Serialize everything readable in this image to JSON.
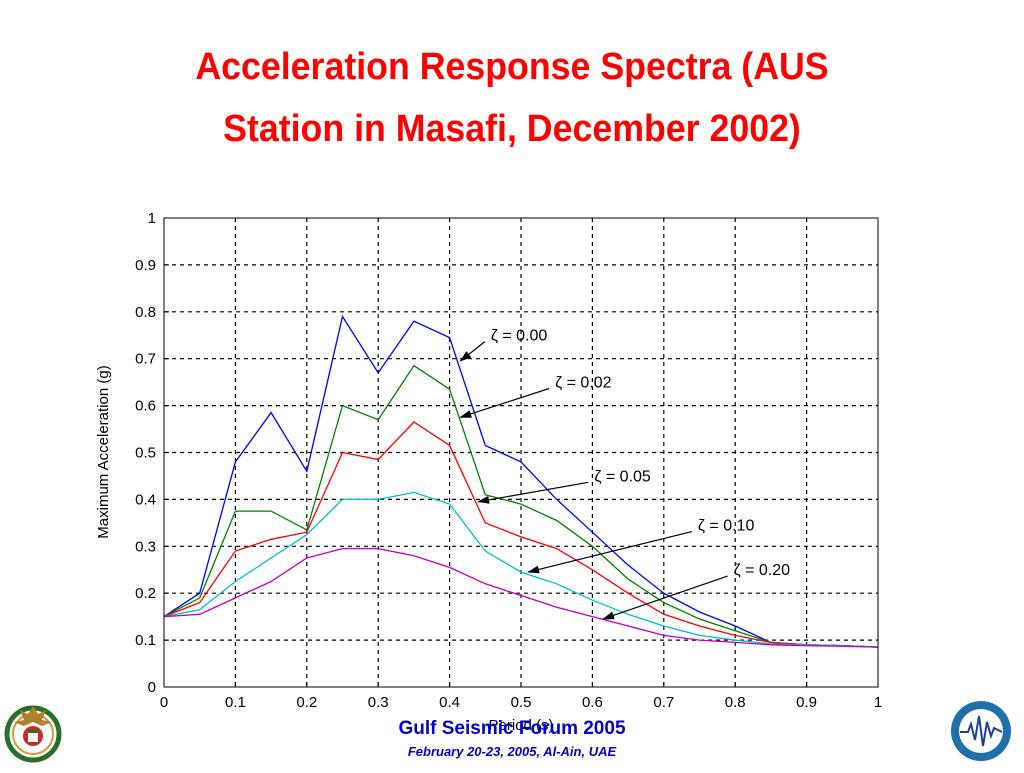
{
  "slide": {
    "title_line1": "Acceleration Response Spectra (AUS",
    "title_line2": "Station in Masafi, December 2002)",
    "footer_title": "Gulf Seismic Forum 2005",
    "footer_sub": "February 20-23, 2005, Al-Ain, UAE"
  },
  "colors": {
    "title": "#ff0000",
    "footer": "#0000cc"
  },
  "chart_data": {
    "type": "line",
    "title": "",
    "xlabel": "Period (s)",
    "ylabel": "Maximum Acceleration (g)",
    "xlim": [
      0,
      1
    ],
    "ylim": [
      0,
      1
    ],
    "xticks": [
      "0",
      "0.1",
      "0.2",
      "0.3",
      "0.4",
      "0.5",
      "0.6",
      "0.7",
      "0.8",
      "0.9",
      "1"
    ],
    "yticks": [
      "0",
      "0.1",
      "0.2",
      "0.3",
      "0.4",
      "0.5",
      "0.6",
      "0.7",
      "0.8",
      "0.9",
      "1"
    ],
    "grid": true,
    "x": [
      0,
      0.05,
      0.1,
      0.15,
      0.2,
      0.25,
      0.3,
      0.35,
      0.4,
      0.45,
      0.5,
      0.55,
      0.6,
      0.65,
      0.7,
      0.75,
      0.8,
      0.85,
      0.9,
      0.95,
      1.0
    ],
    "series": [
      {
        "name": "ζ = 0.00",
        "color": "#0000ff",
        "values": [
          0.15,
          0.2,
          0.48,
          0.585,
          0.46,
          0.79,
          0.67,
          0.78,
          0.745,
          0.515,
          0.48,
          0.4,
          0.33,
          0.26,
          0.2,
          0.16,
          0.13,
          0.095,
          0.09,
          0.088,
          0.085
        ]
      },
      {
        "name": "ζ = 0.02",
        "color": "#008000",
        "values": [
          0.15,
          0.19,
          0.375,
          0.375,
          0.335,
          0.6,
          0.57,
          0.685,
          0.635,
          0.41,
          0.39,
          0.355,
          0.3,
          0.23,
          0.18,
          0.145,
          0.12,
          0.095,
          0.09,
          0.088,
          0.085
        ]
      },
      {
        "name": "ζ = 0.05",
        "color": "#ff0000",
        "values": [
          0.15,
          0.18,
          0.29,
          0.315,
          0.33,
          0.5,
          0.485,
          0.565,
          0.515,
          0.35,
          0.32,
          0.295,
          0.25,
          0.2,
          0.155,
          0.13,
          0.11,
          0.095,
          0.09,
          0.088,
          0.085
        ]
      },
      {
        "name": "ζ = 0.10",
        "color": "#00c0c0",
        "values": [
          0.15,
          0.165,
          0.225,
          0.275,
          0.325,
          0.4,
          0.4,
          0.415,
          0.39,
          0.29,
          0.245,
          0.22,
          0.185,
          0.155,
          0.13,
          0.11,
          0.1,
          0.092,
          0.09,
          0.088,
          0.085
        ]
      },
      {
        "name": "ζ = 0.20",
        "color": "#c000c0",
        "values": [
          0.15,
          0.155,
          0.19,
          0.225,
          0.275,
          0.295,
          0.295,
          0.28,
          0.255,
          0.22,
          0.195,
          0.17,
          0.15,
          0.13,
          0.11,
          0.1,
          0.095,
          0.09,
          0.088,
          0.087,
          0.085
        ]
      }
    ],
    "annotations": [
      {
        "text": "ζ = 0.00",
        "label_at": [
          0.455,
          0.745
        ],
        "arrow_to": [
          0.415,
          0.695
        ]
      },
      {
        "text": "ζ = 0.02",
        "label_at": [
          0.545,
          0.645
        ],
        "arrow_to": [
          0.415,
          0.575
        ]
      },
      {
        "text": "ζ = 0.05",
        "label_at": [
          0.6,
          0.445
        ],
        "arrow_to": [
          0.44,
          0.395
        ]
      },
      {
        "text": "ζ = 0.10",
        "label_at": [
          0.745,
          0.34
        ],
        "arrow_to": [
          0.51,
          0.245
        ]
      },
      {
        "text": "ζ = 0.20",
        "label_at": [
          0.795,
          0.245
        ],
        "arrow_to": [
          0.615,
          0.145
        ]
      }
    ]
  }
}
